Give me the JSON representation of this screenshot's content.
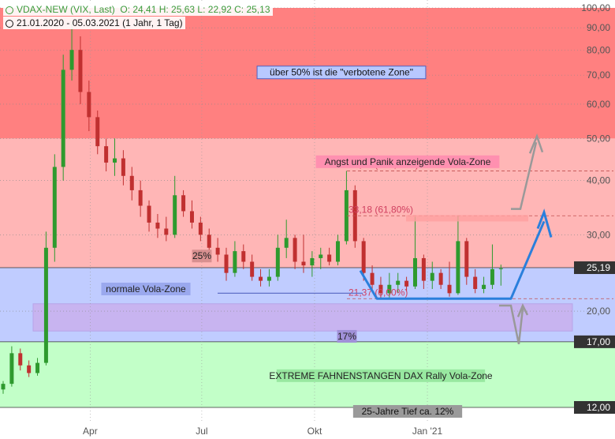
{
  "header": {
    "instrument": "VDAX-NEW (VIX, Last)",
    "ohlc": "O: 24,41  H: 25,63  L: 22,92  C: 25,13",
    "range": "21.01.2020 - 05.03.2021  (1 Jahr, 1 Tag)"
  },
  "icons": {
    "clock": "clock-icon",
    "status_dot": "circle-icon"
  },
  "colors": {
    "red_zone": "#ff8080",
    "pink_zone": "#ffb6b6",
    "blue_zone": "#c0ccff",
    "purple_zone": "#c8b4f0",
    "green_zone": "#c2ffc8",
    "candle_up": "#2e9a2e",
    "candle_down": "#c03030",
    "arrow_blue": "#2a7fdc",
    "arrow_gray": "#999999",
    "fib_line": "#c05050"
  },
  "chart_data": {
    "type": "candlestick",
    "title": "VDAX-NEW (VIX, Last)",
    "y_scale": "log",
    "ylim": [
      10.5,
      100
    ],
    "y_ticks": [
      "100,00",
      "90,00",
      "80,00",
      "70,00",
      "60,00",
      "50,00",
      "40,00",
      "30,00",
      "20,00"
    ],
    "x_ticks": [
      "Apr",
      "Jul",
      "Okt",
      "Jan '21"
    ],
    "x_range": [
      "2020-01-21",
      "2021-03-05"
    ],
    "price_labels": [
      {
        "value": 25.19,
        "text": "25,19",
        "style": "dark"
      },
      {
        "value": 17.0,
        "text": "17,00",
        "style": "dark"
      },
      {
        "value": 12.0,
        "text": "12,00",
        "style": "dark"
      }
    ],
    "zones": [
      {
        "label": "über 50% ist die \"verbotene Zone\"",
        "from": 50,
        "to": 100
      },
      {
        "label": "Angst und Panik anzeigende Vola-Zone",
        "from": 25.19,
        "to": 50
      },
      {
        "label": "normale Vola-Zone",
        "from": 17,
        "to": 25.19
      },
      {
        "label": "EXTREME FAHNENSTANGEN DAX Rally Vola-Zone",
        "from": 12,
        "to": 17
      }
    ],
    "percent_labels": [
      {
        "text": "25%",
        "value": 25.19
      },
      {
        "text": "17%",
        "value": 17.0
      },
      {
        "text": "25-Jahre Tief ca. 12%",
        "value": 12.0
      }
    ],
    "fib_levels": [
      {
        "text": "42,10 (100,00%)",
        "value": 42.1
      },
      {
        "text": "33,18 (61,80%)",
        "value": 33.18
      },
      {
        "text": "21,37 (0,00%)",
        "value": 21.37
      }
    ],
    "candles": [
      {
        "date": "2020-01-21",
        "o": 13.2,
        "h": 13.8,
        "l": 12.9,
        "c": 13.6
      },
      {
        "date": "2020-01-28",
        "o": 13.6,
        "h": 16.6,
        "l": 13.4,
        "c": 16.0
      },
      {
        "date": "2020-02-04",
        "o": 16.0,
        "h": 16.4,
        "l": 14.6,
        "c": 15.0
      },
      {
        "date": "2020-02-11",
        "o": 15.0,
        "h": 15.4,
        "l": 14.1,
        "c": 14.4
      },
      {
        "date": "2020-02-18",
        "o": 14.4,
        "h": 15.6,
        "l": 14.2,
        "c": 15.2
      },
      {
        "date": "2020-02-25",
        "o": 15.2,
        "h": 30.5,
        "l": 15.0,
        "c": 28.0
      },
      {
        "date": "2020-03-03",
        "o": 28.0,
        "h": 46.0,
        "l": 26.0,
        "c": 43.0
      },
      {
        "date": "2020-03-10",
        "o": 43.0,
        "h": 78.0,
        "l": 40.0,
        "c": 72.0
      },
      {
        "date": "2020-03-17",
        "o": 72.0,
        "h": 93.0,
        "l": 68.0,
        "c": 80.0
      },
      {
        "date": "2020-03-24",
        "o": 80.0,
        "h": 86.0,
        "l": 60.0,
        "c": 64.0
      },
      {
        "date": "2020-03-31",
        "o": 64.0,
        "h": 68.0,
        "l": 52.0,
        "c": 56.0
      },
      {
        "date": "2020-04-07",
        "o": 56.0,
        "h": 58.0,
        "l": 46.0,
        "c": 48.0
      },
      {
        "date": "2020-04-14",
        "o": 48.0,
        "h": 50.0,
        "l": 42.0,
        "c": 44.0
      },
      {
        "date": "2020-04-21",
        "o": 44.0,
        "h": 50.0,
        "l": 41.0,
        "c": 45.0
      },
      {
        "date": "2020-04-28",
        "o": 45.0,
        "h": 47.0,
        "l": 39.0,
        "c": 41.0
      },
      {
        "date": "2020-05-05",
        "o": 41.0,
        "h": 43.0,
        "l": 36.0,
        "c": 38.0
      },
      {
        "date": "2020-05-12",
        "o": 38.0,
        "h": 40.0,
        "l": 33.0,
        "c": 35.0
      },
      {
        "date": "2020-05-19",
        "o": 35.0,
        "h": 36.0,
        "l": 30.5,
        "c": 32.0
      },
      {
        "date": "2020-05-26",
        "o": 32.0,
        "h": 33.5,
        "l": 29.5,
        "c": 31.0
      },
      {
        "date": "2020-06-02",
        "o": 31.0,
        "h": 33.0,
        "l": 29.0,
        "c": 30.0
      },
      {
        "date": "2020-06-09",
        "o": 30.0,
        "h": 41.0,
        "l": 29.5,
        "c": 37.0
      },
      {
        "date": "2020-06-16",
        "o": 37.0,
        "h": 38.0,
        "l": 33.0,
        "c": 34.0
      },
      {
        "date": "2020-06-23",
        "o": 34.0,
        "h": 36.0,
        "l": 31.0,
        "c": 32.0
      },
      {
        "date": "2020-06-30",
        "o": 32.0,
        "h": 33.0,
        "l": 29.0,
        "c": 30.0
      },
      {
        "date": "2020-07-07",
        "o": 30.0,
        "h": 31.0,
        "l": 27.0,
        "c": 28.0
      },
      {
        "date": "2020-07-14",
        "o": 28.0,
        "h": 29.5,
        "l": 26.0,
        "c": 27.0
      },
      {
        "date": "2020-07-21",
        "o": 27.0,
        "h": 28.0,
        "l": 23.5,
        "c": 24.5
      },
      {
        "date": "2020-07-28",
        "o": 24.5,
        "h": 29.0,
        "l": 24.0,
        "c": 27.5
      },
      {
        "date": "2020-08-04",
        "o": 27.5,
        "h": 28.5,
        "l": 25.0,
        "c": 26.0
      },
      {
        "date": "2020-08-11",
        "o": 26.0,
        "h": 27.0,
        "l": 23.5,
        "c": 24.0
      },
      {
        "date": "2020-08-18",
        "o": 24.0,
        "h": 25.0,
        "l": 22.8,
        "c": 23.5
      },
      {
        "date": "2020-08-25",
        "o": 23.5,
        "h": 25.0,
        "l": 22.8,
        "c": 24.0
      },
      {
        "date": "2020-09-01",
        "o": 24.0,
        "h": 30.0,
        "l": 23.5,
        "c": 28.0
      },
      {
        "date": "2020-09-08",
        "o": 28.0,
        "h": 32.5,
        "l": 26.5,
        "c": 29.5
      },
      {
        "date": "2020-09-15",
        "o": 29.5,
        "h": 30.0,
        "l": 25.0,
        "c": 26.0
      },
      {
        "date": "2020-09-22",
        "o": 26.0,
        "h": 30.0,
        "l": 24.5,
        "c": 25.5
      },
      {
        "date": "2020-09-29",
        "o": 25.5,
        "h": 27.5,
        "l": 24.0,
        "c": 26.5
      },
      {
        "date": "2020-10-06",
        "o": 26.5,
        "h": 28.0,
        "l": 25.0,
        "c": 27.0
      },
      {
        "date": "2020-10-13",
        "o": 27.0,
        "h": 28.0,
        "l": 25.5,
        "c": 26.0
      },
      {
        "date": "2020-10-20",
        "o": 26.0,
        "h": 30.0,
        "l": 25.5,
        "c": 29.0
      },
      {
        "date": "2020-10-27",
        "o": 29.0,
        "h": 42.1,
        "l": 28.5,
        "c": 38.0
      },
      {
        "date": "2020-11-03",
        "o": 38.0,
        "h": 39.0,
        "l": 28.0,
        "c": 29.0
      },
      {
        "date": "2020-11-10",
        "o": 29.0,
        "h": 29.5,
        "l": 23.5,
        "c": 24.5
      },
      {
        "date": "2020-11-17",
        "o": 24.5,
        "h": 25.5,
        "l": 22.5,
        "c": 23.0
      },
      {
        "date": "2020-11-24",
        "o": 23.0,
        "h": 24.0,
        "l": 21.4,
        "c": 22.0
      },
      {
        "date": "2020-12-01",
        "o": 22.0,
        "h": 24.5,
        "l": 21.5,
        "c": 23.0
      },
      {
        "date": "2020-12-08",
        "o": 23.0,
        "h": 24.5,
        "l": 22.0,
        "c": 23.5
      },
      {
        "date": "2020-12-15",
        "o": 23.5,
        "h": 24.0,
        "l": 22.2,
        "c": 22.8
      },
      {
        "date": "2020-12-22",
        "o": 22.8,
        "h": 33.0,
        "l": 22.5,
        "c": 26.5
      },
      {
        "date": "2020-12-29",
        "o": 26.5,
        "h": 27.0,
        "l": 22.5,
        "c": 23.5
      },
      {
        "date": "2021-01-05",
        "o": 23.5,
        "h": 26.0,
        "l": 22.5,
        "c": 24.5
      },
      {
        "date": "2021-01-12",
        "o": 24.5,
        "h": 25.0,
        "l": 22.5,
        "c": 23.0
      },
      {
        "date": "2021-01-19",
        "o": 23.0,
        "h": 26.0,
        "l": 21.6,
        "c": 22.0
      },
      {
        "date": "2021-01-26",
        "o": 22.0,
        "h": 33.2,
        "l": 21.8,
        "c": 29.0
      },
      {
        "date": "2021-02-02",
        "o": 29.0,
        "h": 29.5,
        "l": 23.0,
        "c": 24.0
      },
      {
        "date": "2021-02-09",
        "o": 24.0,
        "h": 25.0,
        "l": 22.0,
        "c": 22.5
      },
      {
        "date": "2021-02-16",
        "o": 22.5,
        "h": 24.0,
        "l": 22.0,
        "c": 23.0
      },
      {
        "date": "2021-02-23",
        "o": 23.0,
        "h": 28.5,
        "l": 22.5,
        "c": 25.0
      },
      {
        "date": "2021-03-02",
        "o": 25.0,
        "h": 25.6,
        "l": 22.9,
        "c": 25.1
      }
    ]
  }
}
